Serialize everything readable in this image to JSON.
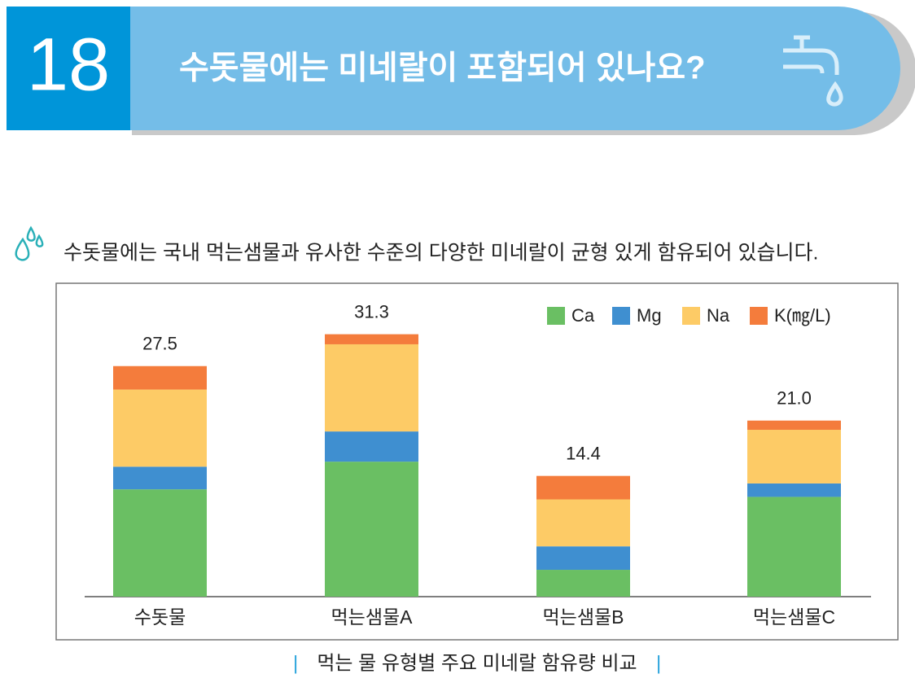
{
  "header": {
    "number": "18",
    "title": "수돗물에는 미네랄이 포함되어 있나요?"
  },
  "subtitle": "수돗물에는 국내 먹는샘물과 유사한 수준의 다양한 미네랄이 균형 있게 함유되어 있습니다.",
  "chart_data": {
    "type": "stacked_bar",
    "caption": "먹는 물 유형별 주요 미네랄 함유량 비교",
    "categories": [
      "수돗물",
      "먹는샘물A",
      "먹는샘물B",
      "먹는샘물C"
    ],
    "series": [
      {
        "name": "Ca",
        "color": "#6abf63",
        "values": [
          12.8,
          16.1,
          3.2,
          11.9
        ]
      },
      {
        "name": "Mg",
        "color": "#3f8fd0",
        "values": [
          2.7,
          3.6,
          2.8,
          1.6
        ]
      },
      {
        "name": "Na",
        "color": "#fdcb66",
        "values": [
          9.2,
          10.4,
          5.6,
          6.4
        ]
      },
      {
        "name": "K(㎎/L)",
        "color": "#f47c3c",
        "values": [
          2.8,
          1.2,
          2.8,
          1.1
        ]
      }
    ],
    "totals": [
      27.5,
      31.3,
      14.4,
      21.0
    ],
    "total_labels": [
      "27.5",
      "31.3",
      "14.4",
      "21.0"
    ],
    "legend": "top-right"
  }
}
